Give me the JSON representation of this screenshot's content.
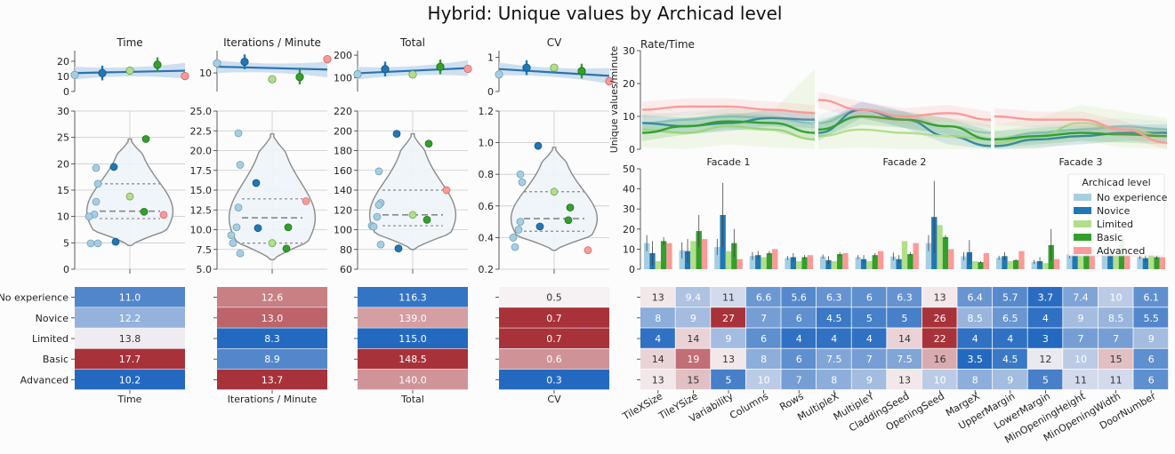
{
  "title": "Hybrid: Unique values by Archicad level",
  "levels": [
    "No experience",
    "Novice",
    "Limited",
    "Basic",
    "Advanced"
  ],
  "level_colors": [
    "#a6cee3",
    "#1f78b4",
    "#b2df8a",
    "#33a02c",
    "#fb9a99"
  ],
  "left_metrics": [
    {
      "name": "Time",
      "top_yticks": [
        "0",
        "10",
        "20"
      ],
      "top_ylim": [
        0,
        27
      ],
      "top_means": [
        11.0,
        12.2,
        13.8,
        17.7,
        10.2
      ],
      "violin_yticks": [
        "0",
        "5",
        "10",
        "15",
        "20",
        "25",
        "30"
      ],
      "violin_ylim": [
        0,
        30
      ],
      "points": [
        {
          "level": 0,
          "value": 19.2
        },
        {
          "level": 0,
          "value": 16.2
        },
        {
          "level": 0,
          "value": 12.8
        },
        {
          "level": 0,
          "value": 10.4
        },
        {
          "level": 0,
          "value": 10.0
        },
        {
          "level": 0,
          "value": 4.9
        },
        {
          "level": 0,
          "value": 4.9
        },
        {
          "level": 1,
          "value": 19.4
        },
        {
          "level": 1,
          "value": 5.2
        },
        {
          "level": 2,
          "value": 13.8
        },
        {
          "level": 3,
          "value": 24.7
        },
        {
          "level": 3,
          "value": 10.9
        },
        {
          "level": 4,
          "value": 10.3
        }
      ],
      "quartiles": [
        9.6,
        11.0,
        16.2
      ],
      "violin_range": [
        4.5,
        24.7
      ],
      "heat": [
        "11.0",
        "12.2",
        "13.8",
        "17.7",
        "10.2"
      ]
    },
    {
      "name": "Iterations / Minute",
      "top_yticks": [
        "10"
      ],
      "top_ylim": [
        5,
        16
      ],
      "top_means": [
        12.6,
        13.0,
        8.3,
        8.9,
        13.7
      ],
      "violin_yticks": [
        "5.0",
        "7.5",
        "10.0",
        "12.5",
        "15.0",
        "17.5",
        "20.0",
        "22.5",
        "25.0"
      ],
      "violin_ylim": [
        5,
        25
      ],
      "points": [
        {
          "level": 0,
          "value": 22.2
        },
        {
          "level": 0,
          "value": 18.2
        },
        {
          "level": 0,
          "value": 12.8
        },
        {
          "level": 0,
          "value": 10.3
        },
        {
          "level": 0,
          "value": 9.3
        },
        {
          "level": 0,
          "value": 8.3
        },
        {
          "level": 0,
          "value": 7.0
        },
        {
          "level": 1,
          "value": 15.9
        },
        {
          "level": 1,
          "value": 10.2
        },
        {
          "level": 2,
          "value": 8.3
        },
        {
          "level": 3,
          "value": 10.3
        },
        {
          "level": 3,
          "value": 7.6
        },
        {
          "level": 4,
          "value": 13.6
        }
      ],
      "quartiles": [
        8.3,
        11.5,
        13.9
      ],
      "violin_range": [
        6.2,
        22.1
      ],
      "heat": [
        "12.6",
        "13.0",
        "8.3",
        "8.9",
        "13.7"
      ]
    },
    {
      "name": "Total",
      "top_yticks": [
        "100",
        "200"
      ],
      "top_ylim": [
        40,
        220
      ],
      "top_means": [
        116.3,
        139.0,
        115.0,
        148.5,
        140.0
      ],
      "violin_yticks": [
        "60",
        "80",
        "100",
        "120",
        "140",
        "160",
        "180",
        "200",
        "220"
      ],
      "violin_ylim": [
        60,
        220
      ],
      "points": [
        {
          "level": 0,
          "value": 159
        },
        {
          "level": 0,
          "value": 127
        },
        {
          "level": 0,
          "value": 125
        },
        {
          "level": 0,
          "value": 113
        },
        {
          "level": 0,
          "value": 104
        },
        {
          "level": 0,
          "value": 103
        },
        {
          "level": 0,
          "value": 85
        },
        {
          "level": 1,
          "value": 197
        },
        {
          "level": 1,
          "value": 81
        },
        {
          "level": 2,
          "value": 115
        },
        {
          "level": 3,
          "value": 187
        },
        {
          "level": 3,
          "value": 110
        },
        {
          "level": 4,
          "value": 140
        }
      ],
      "quartiles": [
        104,
        115,
        140
      ],
      "violin_range": [
        80,
        197
      ],
      "heat": [
        "116.3",
        "139.0",
        "115.0",
        "148.5",
        "140.0"
      ]
    },
    {
      "name": "CV",
      "top_yticks": [
        "0",
        "1"
      ],
      "top_ylim": [
        0,
        1.2
      ],
      "top_means": [
        0.5,
        0.7,
        0.7,
        0.6,
        0.3
      ],
      "violin_yticks": [
        "0.2",
        "0.4",
        "0.6",
        "0.8",
        "1.0",
        "1.2"
      ],
      "violin_ylim": [
        0.2,
        1.2
      ],
      "points": [
        {
          "level": 0,
          "value": 0.8
        },
        {
          "level": 0,
          "value": 0.75
        },
        {
          "level": 0,
          "value": 0.5
        },
        {
          "level": 0,
          "value": 0.45
        },
        {
          "level": 0,
          "value": 0.4
        },
        {
          "level": 0,
          "value": 0.34
        },
        {
          "level": 1,
          "value": 0.98
        },
        {
          "level": 1,
          "value": 0.47
        },
        {
          "level": 2,
          "value": 0.69
        },
        {
          "level": 3,
          "value": 0.59
        },
        {
          "level": 3,
          "value": 0.51
        },
        {
          "level": 4,
          "value": 0.32
        }
      ],
      "quartiles": [
        0.44,
        0.52,
        0.69
      ],
      "violin_range": [
        0.32,
        0.97
      ],
      "heat": [
        "0.5",
        "0.7",
        "0.7",
        "0.6",
        "0.3"
      ]
    }
  ],
  "rate": {
    "title": "Rate/Time",
    "ylabel": "Unique values/minute",
    "yticks": [
      "0",
      "10",
      "20",
      "30"
    ],
    "ylim": [
      0,
      30
    ],
    "facades": [
      "Facade 1",
      "Facade 2",
      "Facade 3"
    ]
  },
  "bars": {
    "yticks": [
      "0",
      "10",
      "20",
      "30",
      "40",
      "50"
    ],
    "ylim": [
      0,
      50
    ],
    "legend_title": "Archicad level",
    "params": [
      "TileXSize",
      "TileYSize",
      "Variability",
      "Columns",
      "Rows",
      "MultipleX",
      "MultipleY",
      "CladdingSeed",
      "OpeningSeed",
      "MargeX",
      "UpperMargin",
      "LowerMargin",
      "MinOpeningHeight",
      "MinOpeningWidth",
      "DoorNumber"
    ],
    "values": [
      [
        13,
        9.4,
        11,
        6.6,
        5.6,
        6.3,
        6,
        6.3,
        13,
        6.4,
        5.7,
        3.7,
        7.4,
        10,
        6.1
      ],
      [
        8,
        9,
        27,
        7,
        6,
        4.5,
        5,
        5,
        26,
        8.5,
        6.5,
        4,
        9,
        8.5,
        5.5
      ],
      [
        4,
        14,
        9,
        6,
        4,
        4,
        4,
        14,
        22,
        4,
        4,
        3,
        7,
        7,
        9
      ],
      [
        14,
        19,
        13,
        8,
        6,
        7.5,
        7,
        7.5,
        16,
        3.5,
        4.5,
        12,
        10,
        15,
        6
      ],
      [
        13,
        15,
        5,
        10,
        7,
        8,
        9,
        13,
        10,
        8,
        9,
        5,
        11,
        11,
        6
      ]
    ],
    "errors": [
      [
        4,
        4,
        4,
        2,
        1,
        1,
        1,
        2,
        4,
        2,
        1,
        1,
        2,
        3,
        1
      ],
      [
        6,
        6,
        16,
        2,
        2,
        2,
        2,
        2,
        18,
        6,
        2,
        2,
        3,
        3,
        2
      ],
      [
        0,
        0,
        0,
        0,
        0,
        0,
        0,
        0,
        0,
        0,
        0,
        0,
        0,
        0,
        0
      ],
      [
        2,
        8,
        7,
        1,
        1,
        1,
        1,
        1,
        1,
        0.5,
        0.5,
        8,
        1,
        2,
        1
      ],
      [
        0,
        0,
        0,
        0,
        0,
        0,
        0,
        0,
        0,
        0,
        0,
        0,
        0,
        0,
        0
      ]
    ]
  },
  "heat_grid": [
    [
      "13",
      "9.4",
      "11",
      "6.6",
      "5.6",
      "6.3",
      "6",
      "6.3",
      "13",
      "6.4",
      "5.7",
      "3.7",
      "7.4",
      "10",
      "6.1"
    ],
    [
      "8",
      "9",
      "27",
      "7",
      "6",
      "4.5",
      "5",
      "5",
      "26",
      "8.5",
      "6.5",
      "4",
      "9",
      "8.5",
      "5.5"
    ],
    [
      "4",
      "14",
      "9",
      "6",
      "4",
      "4",
      "4",
      "14",
      "22",
      "4",
      "4",
      "3",
      "7",
      "7",
      "9"
    ],
    [
      "14",
      "19",
      "13",
      "8",
      "6",
      "7.5",
      "7",
      "7.5",
      "16",
      "3.5",
      "4.5",
      "12",
      "10",
      "15",
      "6"
    ],
    [
      "13",
      "15",
      "5",
      "10",
      "7",
      "8",
      "9",
      "13",
      "10",
      "8",
      "9",
      "5",
      "11",
      "11",
      "6"
    ]
  ]
}
